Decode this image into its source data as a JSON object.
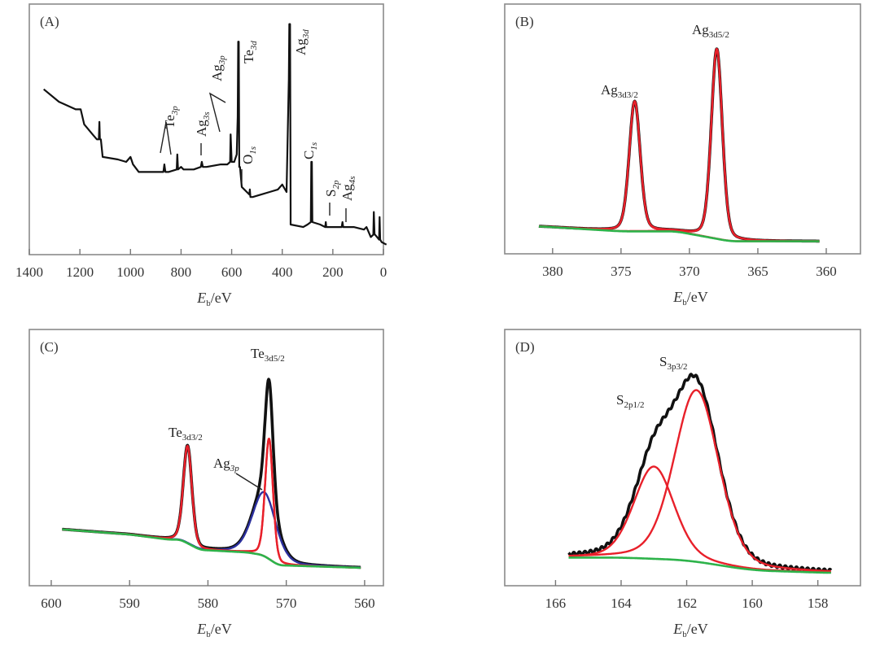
{
  "colors": {
    "measured": "#111111",
    "fit": "#e8202a",
    "background": "#2db34a",
    "ag3p_component": "#2b2f9e"
  },
  "chart_data": [
    {
      "id": "A",
      "type": "line",
      "panel_label": "(A)",
      "xlabel": {
        "main": "E",
        "sub": "b",
        "unit": "/eV"
      },
      "xlim": [
        1400,
        0
      ],
      "ylim": [
        0,
        1
      ],
      "x_reversed": true,
      "y_ticks_shown": false,
      "grid": false,
      "xticks": [
        1400,
        1200,
        1000,
        800,
        600,
        400,
        200,
        0
      ],
      "series": [
        {
          "color": "#111111",
          "points": [
            [
              1343,
              0.66
            ],
            [
              1283,
              0.61
            ],
            [
              1217,
              0.58
            ],
            [
              1197,
              0.58
            ],
            [
              1183,
              0.52
            ],
            [
              1150,
              0.48
            ],
            [
              1133,
              0.46
            ],
            [
              1125,
              0.46
            ],
            [
              1123,
              0.53
            ],
            [
              1121,
              0.46
            ],
            [
              1117,
              0.46
            ],
            [
              1110,
              0.39
            ],
            [
              1050,
              0.38
            ],
            [
              1017,
              0.37
            ],
            [
              1000,
              0.39
            ],
            [
              990,
              0.36
            ],
            [
              967,
              0.33
            ],
            [
              917,
              0.33
            ],
            [
              870,
              0.33
            ],
            [
              866,
              0.36
            ],
            [
              862,
              0.33
            ],
            [
              850,
              0.33
            ],
            [
              817,
              0.34
            ],
            [
              815,
              0.4
            ],
            [
              812,
              0.34
            ],
            [
              800,
              0.35
            ],
            [
              790,
              0.34
            ],
            [
              750,
              0.34
            ],
            [
              722,
              0.35
            ],
            [
              718,
              0.37
            ],
            [
              714,
              0.35
            ],
            [
              700,
              0.35
            ],
            [
              643,
              0.36
            ],
            [
              617,
              0.36
            ],
            [
              606,
              0.37
            ],
            [
              604,
              0.48
            ],
            [
              600,
              0.37
            ],
            [
              590,
              0.37
            ],
            [
              580,
              0.4
            ],
            [
              576,
              0.55
            ],
            [
              574,
              0.85
            ],
            [
              572,
              0.85
            ],
            [
              570,
              0.35
            ],
            [
              567,
              0.35
            ],
            [
              560,
              0.27
            ],
            [
              530,
              0.24
            ],
            [
              528,
              0.26
            ],
            [
              526,
              0.23
            ],
            [
              517,
              0.23
            ],
            [
              483,
              0.24
            ],
            [
              450,
              0.25
            ],
            [
              417,
              0.26
            ],
            [
              400,
              0.28
            ],
            [
              383,
              0.25
            ],
            [
              374,
              0.7
            ],
            [
              372,
              0.92
            ],
            [
              369,
              0.92
            ],
            [
              367,
              0.18
            ],
            [
              367,
              0.12
            ],
            [
              317,
              0.11
            ],
            [
              300,
              0.12
            ],
            [
              287,
              0.13
            ],
            [
              285,
              0.37
            ],
            [
              283,
              0.37
            ],
            [
              281,
              0.13
            ],
            [
              250,
              0.12
            ],
            [
              230,
              0.11
            ],
            [
              228,
              0.13
            ],
            [
              226,
              0.11
            ],
            [
              200,
              0.11
            ],
            [
              165,
              0.11
            ],
            [
              162,
              0.13
            ],
            [
              159,
              0.11
            ],
            [
              150,
              0.11
            ],
            [
              117,
              0.11
            ],
            [
              77,
              0.1
            ],
            [
              67,
              0.11
            ],
            [
              50,
              0.07
            ],
            [
              40,
              0.08
            ],
            [
              38,
              0.17
            ],
            [
              35,
              0.08
            ],
            [
              33,
              0.08
            ],
            [
              17,
              0.06
            ],
            [
              15,
              0.15
            ],
            [
              13,
              0.06
            ],
            [
              7,
              0.05
            ],
            [
              -12,
              0.04
            ]
          ]
        }
      ],
      "annotations": [
        {
          "main": "Te",
          "sub": "3p"
        },
        {
          "main": "Ag",
          "sub": "3s"
        },
        {
          "main": "Ag",
          "sub": "3p"
        },
        {
          "main": "Te",
          "sub": "3d"
        },
        {
          "main": "O",
          "sub": "1s"
        },
        {
          "main": "Ag",
          "sub": "3d"
        },
        {
          "main": "C",
          "sub": "1s"
        },
        {
          "main": "S",
          "sub": "2p"
        },
        {
          "main": "Ag",
          "sub": "4s"
        }
      ]
    },
    {
      "id": "B",
      "type": "line",
      "panel_label": "(B)",
      "xlabel": {
        "main": "E",
        "sub": "b",
        "unit": "/eV"
      },
      "xlim": [
        383.5,
        357.5
      ],
      "ylim": [
        0,
        1
      ],
      "x_reversed": true,
      "y_ticks_shown": false,
      "grid": false,
      "xticks": [
        380,
        375,
        370,
        365,
        360
      ],
      "data_range": [
        381,
        360.5
      ],
      "background": [
        [
          381,
          0.11
        ],
        [
          375,
          0.09
        ],
        [
          371,
          0.09
        ],
        [
          369,
          0.07
        ],
        [
          367,
          0.05
        ],
        [
          360.5,
          0.05
        ]
      ],
      "components": [
        {
          "center": 374.0,
          "height": 0.52,
          "fwhm": 0.95,
          "color": "#e8202a"
        },
        {
          "center": 368.0,
          "height": 0.76,
          "fwhm": 0.95,
          "color": "#e8202a"
        }
      ],
      "annotations": [
        {
          "main": "Ag",
          "sub": "3d3/2"
        },
        {
          "main": "Ag",
          "sub": "3d5/2"
        }
      ]
    },
    {
      "id": "C",
      "type": "line",
      "panel_label": "(C)",
      "xlabel": {
        "main": "E",
        "sub": "b",
        "unit": "/eV"
      },
      "xlim": [
        602.8,
        557.6
      ],
      "ylim": [
        0,
        1
      ],
      "x_reversed": true,
      "y_ticks_shown": false,
      "grid": false,
      "xticks": [
        600,
        590,
        580,
        570,
        560
      ],
      "data_range": [
        598.6,
        560.5
      ],
      "background": [
        [
          598.6,
          0.22
        ],
        [
          590,
          0.2
        ],
        [
          585,
          0.18
        ],
        [
          583.5,
          0.18
        ],
        [
          581,
          0.14
        ],
        [
          575,
          0.13
        ],
        [
          573,
          0.12
        ],
        [
          571,
          0.08
        ],
        [
          560.5,
          0.07
        ]
      ],
      "components": [
        {
          "center": 582.6,
          "height": 0.38,
          "fwhm": 1.3,
          "color": "#e8202a"
        },
        {
          "center": 572.2,
          "height": 0.47,
          "fwhm": 1.2,
          "color": "#e8202a"
        },
        {
          "center": 572.8,
          "height": 0.25,
          "fwhm": 3.6,
          "color": "#2b2f9e"
        }
      ],
      "annotations": [
        {
          "main": "Te",
          "sub": "3d5/2"
        },
        {
          "main": "Te",
          "sub": "3d3/2"
        },
        {
          "main": "Ag",
          "sub": "3p"
        }
      ]
    },
    {
      "id": "D",
      "type": "line",
      "panel_label": "(D)",
      "xlabel": {
        "main": "E",
        "sub": "b",
        "unit": "/eV"
      },
      "xlim": [
        167.55,
        156.7
      ],
      "ylim": [
        0,
        1
      ],
      "x_reversed": true,
      "y_ticks_shown": false,
      "grid": false,
      "xticks": [
        166,
        164,
        162,
        160,
        158
      ],
      "data_range": [
        165.6,
        157.6
      ],
      "background": [
        [
          165.6,
          0.11
        ],
        [
          164,
          0.11
        ],
        [
          162,
          0.1
        ],
        [
          161,
          0.08
        ],
        [
          160,
          0.06
        ],
        [
          157.6,
          0.05
        ]
      ],
      "components": [
        {
          "center": 163.0,
          "height": 0.36,
          "fwhm": 1.45,
          "color": "#e8202a"
        },
        {
          "center": 161.7,
          "height": 0.67,
          "fwhm": 1.6,
          "color": "#e8202a"
        }
      ],
      "annotations": [
        {
          "main": "S",
          "sub": "3p3/2"
        },
        {
          "main": "S",
          "sub": "2p1/2"
        }
      ]
    }
  ]
}
